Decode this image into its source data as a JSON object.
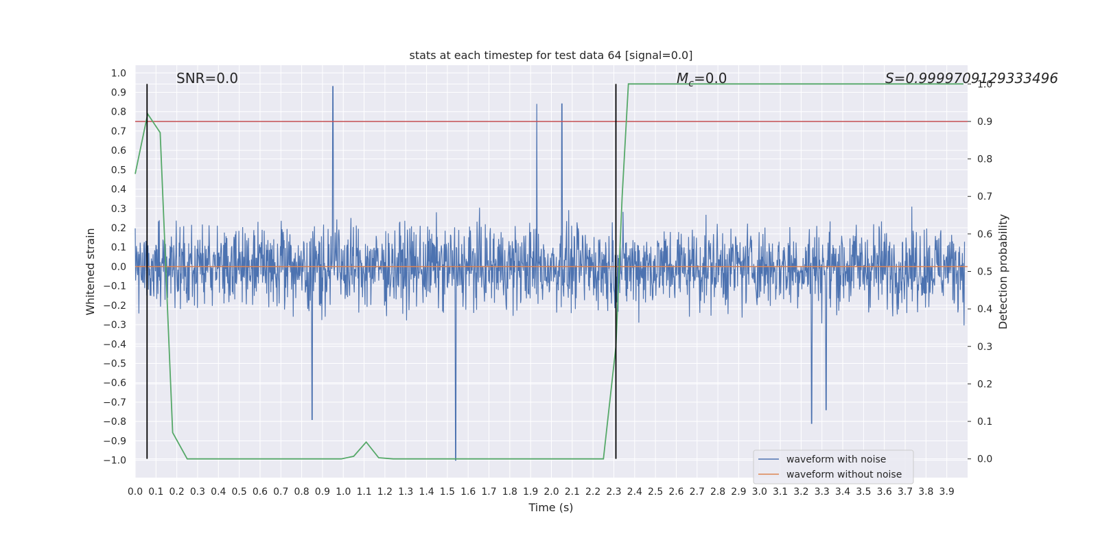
{
  "chart_data": {
    "type": "line",
    "title": "stats at each timestep for test data 64 [signal=0.0]",
    "xlabel": "Time (s)",
    "ylabel_left": "Whitened strain",
    "ylabel_right": "Detection probability",
    "xlim": [
      0.0,
      4.0
    ],
    "ylim_left": [
      -1.09,
      1.04
    ],
    "ylim_right": [
      -0.05,
      1.05
    ],
    "x_ticks": [
      "0.0",
      "0.1",
      "0.2",
      "0.3",
      "0.4",
      "0.5",
      "0.6",
      "0.7",
      "0.8",
      "0.9",
      "1.0",
      "1.1",
      "1.2",
      "1.3",
      "1.4",
      "1.5",
      "1.6",
      "1.7",
      "1.8",
      "1.9",
      "2.0",
      "2.1",
      "2.2",
      "2.3",
      "2.4",
      "2.5",
      "2.6",
      "2.7",
      "2.8",
      "2.9",
      "3.0",
      "3.1",
      "3.2",
      "3.3",
      "3.4",
      "3.5",
      "3.6",
      "3.7",
      "3.8",
      "3.9"
    ],
    "y_ticks_left": [
      "−1.0",
      "−0.9",
      "−0.8",
      "−0.7",
      "−0.6",
      "−0.5",
      "−0.4",
      "−0.3",
      "−0.2",
      "−0.1",
      "0.0",
      "0.1",
      "0.2",
      "0.3",
      "0.4",
      "0.5",
      "0.6",
      "0.7",
      "0.8",
      "0.9",
      "1.0"
    ],
    "y_ticks_right": [
      "0.0",
      "0.1",
      "0.2",
      "0.3",
      "0.4",
      "0.5",
      "0.6",
      "0.7",
      "0.8",
      "0.9",
      "1.0"
    ],
    "annotations": {
      "snr": "SNR=0.0",
      "mc_symbol": "M",
      "mc_sub": "c",
      "mc_value": "=0.0",
      "s": "S=0.9999709129333496"
    },
    "series": [
      {
        "name": "waveform with noise",
        "color": "#4c72b0",
        "axis": "left",
        "noise_amplitude": 0.3,
        "length": 2000,
        "spikes": [
          [
            0.95,
            0.93
          ],
          [
            1.93,
            0.84
          ],
          [
            2.05,
            0.84
          ],
          [
            1.54,
            -1.0
          ],
          [
            3.25,
            -0.81
          ],
          [
            3.32,
            -0.74
          ],
          [
            0.85,
            -0.79
          ]
        ]
      },
      {
        "name": "waveform without noise",
        "color": "#dd8452",
        "axis": "left",
        "value": 0.0
      },
      {
        "name": "detection probability",
        "color": "#55a868",
        "axis": "right",
        "x": [
          0.0,
          0.06,
          0.12,
          0.18,
          0.25,
          0.31,
          0.37,
          0.43,
          0.5,
          0.56,
          0.62,
          0.68,
          0.74,
          0.8,
          0.87,
          0.93,
          0.99,
          1.05,
          1.11,
          1.17,
          1.24,
          1.3,
          1.36,
          1.42,
          1.48,
          1.54,
          1.6,
          1.67,
          1.73,
          1.79,
          1.85,
          1.91,
          1.97,
          2.03,
          2.1,
          2.16,
          2.22,
          2.25,
          2.31,
          2.34,
          2.37,
          3.98
        ],
        "y": [
          0.76,
          0.92,
          0.87,
          0.07,
          0.0,
          0.0,
          0.0,
          0.0,
          0.0,
          0.0,
          0.0,
          0.0,
          0.0,
          0.0,
          0.0,
          0.0,
          0.0,
          0.007,
          0.045,
          0.003,
          0.0,
          0.0,
          0.0,
          0.0,
          0.0,
          0.0,
          0.0,
          0.0,
          0.0,
          0.0,
          0.0,
          0.0,
          0.0,
          0.0,
          0.0,
          0.0,
          0.0,
          0.0,
          0.3,
          0.7,
          1.0,
          1.0
        ]
      }
    ],
    "threshold_line": {
      "value": 0.9,
      "axis": "right",
      "color": "#c44e52"
    },
    "vertical_lines": [
      {
        "x": 0.057,
        "color": "#000000"
      },
      {
        "x": 2.31,
        "color": "#000000"
      }
    ],
    "legend": {
      "position": "lower-right",
      "entries": [
        "waveform with noise",
        "waveform without noise"
      ]
    }
  }
}
